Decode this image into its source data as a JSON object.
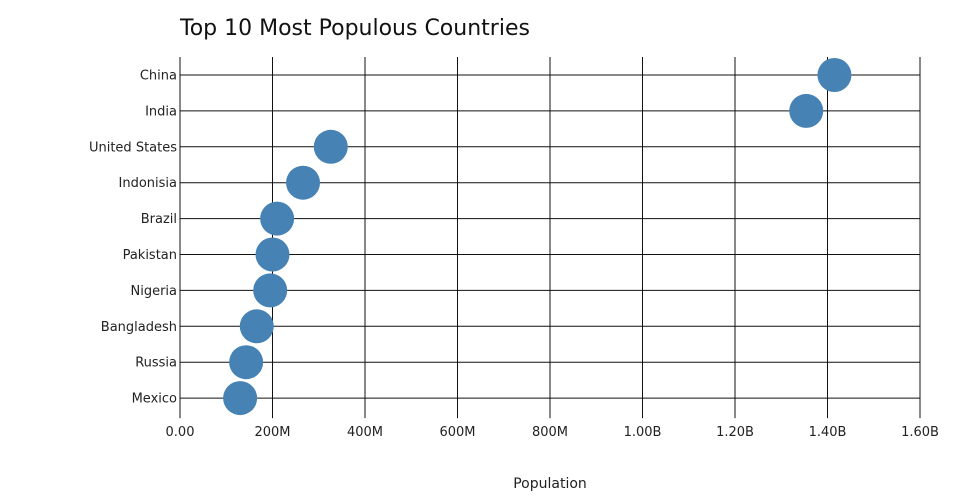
{
  "chart_data": {
    "type": "scatter",
    "title": "Top 10 Most Populous Countries",
    "xlabel": "Population",
    "ylabel": "",
    "xlim": [
      0,
      1600000000
    ],
    "x_ticks": [
      0,
      200000000,
      400000000,
      600000000,
      800000000,
      1000000000,
      1200000000,
      1400000000,
      1600000000
    ],
    "x_tick_labels": [
      "0.00",
      "200M",
      "400M",
      "600M",
      "800M",
      "1.00B",
      "1.20B",
      "1.40B",
      "1.60B"
    ],
    "categories": [
      "China",
      "India",
      "United States",
      "Indonisia",
      "Brazil",
      "Pakistan",
      "Nigeria",
      "Bangladesh",
      "Russia",
      "Mexico"
    ],
    "values": [
      1415000000,
      1354000000,
      326000000,
      266000000,
      210000000,
      200000000,
      195000000,
      166000000,
      143000000,
      130000000
    ],
    "marker_color": "#4682b4",
    "grid": true,
    "legend": "none"
  }
}
